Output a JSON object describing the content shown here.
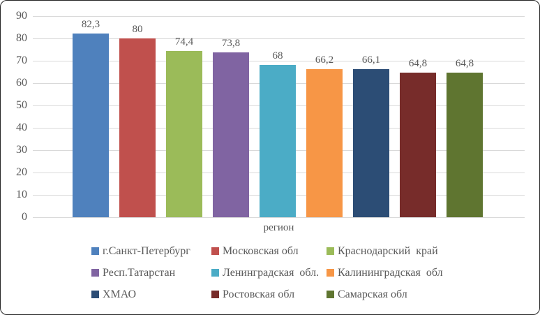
{
  "chart_data": {
    "type": "bar",
    "title": "",
    "xlabel": "регион",
    "ylabel": "",
    "ylim": [
      0,
      90
    ],
    "ytick_step": 10,
    "yticks": [
      "0",
      "10",
      "20",
      "30",
      "40",
      "50",
      "60",
      "70",
      "80",
      "90"
    ],
    "grid": true,
    "legend_position": "bottom",
    "categories": [
      "г.Санкт-Петербург",
      "Московская обл",
      "Краснодарский  край",
      "Респ.Татарстан",
      "Ленинградская  обл.",
      "Калининградская  обл",
      "ХМАО",
      "Ростовская обл",
      "Самарская обл"
    ],
    "values": [
      82.3,
      80,
      74.4,
      73.8,
      68,
      66.2,
      66.1,
      64.8,
      64.8
    ],
    "value_labels": [
      "82,3",
      "80",
      "74,4",
      "73,8",
      "68",
      "66,2",
      "66,1",
      "64,8",
      "64,8"
    ],
    "series_colors": [
      "#4F81BD",
      "#C0504D",
      "#9BBB59",
      "#8064A2",
      "#4BACC6",
      "#F79646",
      "#2C4D75",
      "#772C2A",
      "#5F7530"
    ]
  },
  "style_colors": {
    "background": "#FFFFFF",
    "frame_border": "#242424",
    "gridline": "#D9D9D9",
    "text": "#595959"
  }
}
